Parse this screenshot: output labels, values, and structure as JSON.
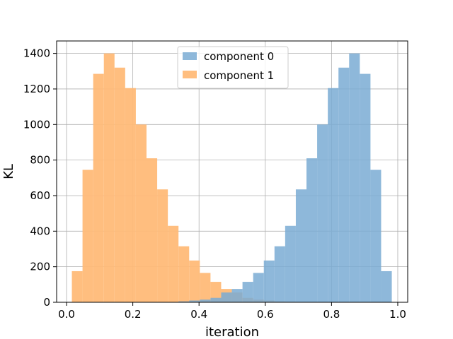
{
  "chart_data": {
    "type": "histogram",
    "xlabel": "iteration",
    "ylabel": "KL",
    "xlim": [
      -0.03,
      1.03
    ],
    "ylim": [
      0,
      1470
    ],
    "xticks": [
      0.0,
      0.2,
      0.4,
      0.6,
      0.8,
      1.0
    ],
    "xtick_labels": [
      "0.0",
      "0.2",
      "0.4",
      "0.6",
      "0.8",
      "1.0"
    ],
    "yticks": [
      0,
      200,
      400,
      600,
      800,
      1000,
      1200,
      1400
    ],
    "ytick_labels": [
      "0",
      "200",
      "400",
      "600",
      "800",
      "1000",
      "1200",
      "1400"
    ],
    "grid": true,
    "legend_position": "top-center",
    "bin_start": 0.016,
    "bin_width": 0.0322,
    "series": [
      {
        "name": "component 1",
        "color": "#ffbb78",
        "values": [
          175,
          745,
          1285,
          1400,
          1320,
          1205,
          1000,
          810,
          635,
          430,
          315,
          235,
          165,
          115,
          75,
          55,
          25,
          15,
          10,
          5,
          3,
          0,
          0,
          0,
          0,
          0,
          0,
          0,
          0,
          0
        ]
      },
      {
        "name": "component 0",
        "color": "#7aabd3",
        "values": [
          0,
          0,
          0,
          0,
          0,
          0,
          0,
          0,
          0,
          0,
          5,
          10,
          15,
          25,
          55,
          75,
          115,
          165,
          235,
          315,
          430,
          635,
          810,
          1000,
          1205,
          1320,
          1400,
          1285,
          745,
          175
        ]
      }
    ]
  }
}
